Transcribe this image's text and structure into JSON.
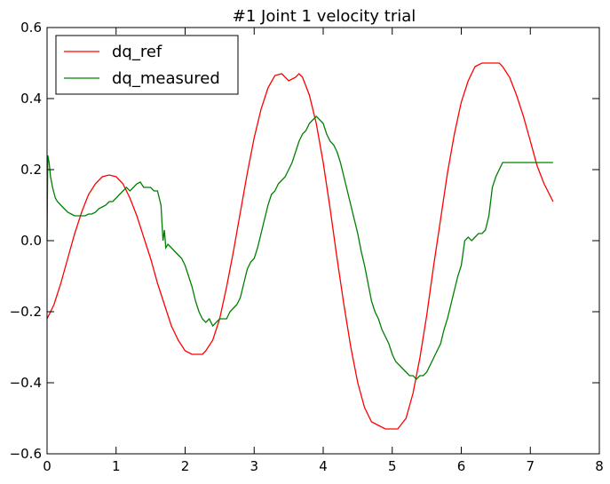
{
  "chart_data": {
    "type": "line",
    "title": "#1 Joint 1 velocity trial",
    "xlabel": "",
    "ylabel": "",
    "xlim": [
      0,
      8
    ],
    "ylim": [
      -0.6,
      0.6
    ],
    "x_ticks": [
      0,
      1,
      2,
      3,
      4,
      5,
      6,
      7,
      8
    ],
    "y_ticks": [
      -0.6,
      -0.4,
      -0.2,
      0.0,
      0.2,
      0.4,
      0.6
    ],
    "x_tick_labels": [
      "0",
      "1",
      "2",
      "3",
      "4",
      "5",
      "6",
      "7",
      "8"
    ],
    "y_tick_labels": [
      "−0.6",
      "−0.4",
      "−0.2",
      "0.0",
      "0.2",
      "0.4",
      "0.6"
    ],
    "grid": false,
    "legend_position": "top-left",
    "series": [
      {
        "name": "dq_ref",
        "color": "#ff0000",
        "x": [
          0.0,
          0.1,
          0.2,
          0.3,
          0.4,
          0.5,
          0.6,
          0.7,
          0.8,
          0.9,
          1.0,
          1.1,
          1.2,
          1.3,
          1.4,
          1.5,
          1.6,
          1.7,
          1.8,
          1.9,
          2.0,
          2.1,
          2.2,
          2.25,
          2.3,
          2.4,
          2.5,
          2.6,
          2.7,
          2.8,
          2.9,
          3.0,
          3.1,
          3.2,
          3.3,
          3.4,
          3.5,
          3.6,
          3.65,
          3.7,
          3.8,
          3.9,
          4.0,
          4.1,
          4.2,
          4.3,
          4.4,
          4.5,
          4.6,
          4.7,
          4.8,
          4.9,
          5.0,
          5.08,
          5.2,
          5.3,
          5.4,
          5.5,
          5.6,
          5.7,
          5.8,
          5.9,
          6.0,
          6.1,
          6.2,
          6.3,
          6.4,
          6.5,
          6.55,
          6.6,
          6.7,
          6.8,
          6.9,
          7.0,
          7.1,
          7.2,
          7.33
        ],
        "y": [
          -0.22,
          -0.18,
          -0.12,
          -0.05,
          0.02,
          0.08,
          0.13,
          0.16,
          0.18,
          0.185,
          0.18,
          0.16,
          0.12,
          0.07,
          0.01,
          -0.05,
          -0.12,
          -0.18,
          -0.24,
          -0.28,
          -0.31,
          -0.32,
          -0.32,
          -0.32,
          -0.31,
          -0.28,
          -0.22,
          -0.13,
          -0.03,
          0.08,
          0.19,
          0.29,
          0.37,
          0.43,
          0.465,
          0.47,
          0.45,
          0.46,
          0.47,
          0.46,
          0.41,
          0.33,
          0.22,
          0.09,
          -0.05,
          -0.18,
          -0.3,
          -0.4,
          -0.47,
          -0.51,
          -0.52,
          -0.53,
          -0.53,
          -0.53,
          -0.5,
          -0.43,
          -0.33,
          -0.21,
          -0.07,
          0.06,
          0.19,
          0.3,
          0.39,
          0.45,
          0.49,
          0.5,
          0.5,
          0.5,
          0.5,
          0.49,
          0.46,
          0.41,
          0.35,
          0.28,
          0.21,
          0.16,
          0.11
        ]
      },
      {
        "name": "dq_measured",
        "color": "#008000",
        "x": [
          0.0,
          0.01,
          0.03,
          0.05,
          0.08,
          0.12,
          0.15,
          0.2,
          0.25,
          0.3,
          0.35,
          0.4,
          0.45,
          0.5,
          0.55,
          0.6,
          0.65,
          0.7,
          0.75,
          0.8,
          0.85,
          0.9,
          0.95,
          1.0,
          1.05,
          1.1,
          1.15,
          1.2,
          1.25,
          1.3,
          1.35,
          1.4,
          1.45,
          1.5,
          1.55,
          1.6,
          1.65,
          1.68,
          1.7,
          1.72,
          1.75,
          1.8,
          1.85,
          1.9,
          1.95,
          2.0,
          2.05,
          2.1,
          2.15,
          2.2,
          2.25,
          2.3,
          2.35,
          2.4,
          2.45,
          2.5,
          2.55,
          2.6,
          2.65,
          2.7,
          2.75,
          2.8,
          2.85,
          2.9,
          2.95,
          3.0,
          3.05,
          3.1,
          3.15,
          3.2,
          3.25,
          3.3,
          3.35,
          3.4,
          3.45,
          3.5,
          3.55,
          3.6,
          3.65,
          3.7,
          3.75,
          3.8,
          3.85,
          3.9,
          3.95,
          4.0,
          4.05,
          4.1,
          4.15,
          4.2,
          4.25,
          4.3,
          4.35,
          4.4,
          4.45,
          4.5,
          4.55,
          4.6,
          4.65,
          4.7,
          4.75,
          4.8,
          4.85,
          4.9,
          4.95,
          5.0,
          5.05,
          5.1,
          5.15,
          5.2,
          5.25,
          5.3,
          5.35,
          5.4,
          5.45,
          5.5,
          5.55,
          5.6,
          5.65,
          5.7,
          5.75,
          5.8,
          5.85,
          5.9,
          5.95,
          6.0,
          6.05,
          6.1,
          6.15,
          6.2,
          6.25,
          6.3,
          6.35,
          6.4,
          6.45,
          6.5,
          6.6,
          6.8,
          7.0,
          7.2,
          7.33
        ],
        "y": [
          0.0,
          0.24,
          0.22,
          0.18,
          0.15,
          0.12,
          0.11,
          0.1,
          0.09,
          0.08,
          0.075,
          0.07,
          0.07,
          0.07,
          0.07,
          0.075,
          0.075,
          0.08,
          0.09,
          0.095,
          0.1,
          0.11,
          0.11,
          0.12,
          0.13,
          0.14,
          0.15,
          0.14,
          0.15,
          0.16,
          0.165,
          0.15,
          0.15,
          0.15,
          0.14,
          0.14,
          0.1,
          0.0,
          0.03,
          -0.02,
          -0.01,
          -0.02,
          -0.03,
          -0.04,
          -0.05,
          -0.07,
          -0.1,
          -0.13,
          -0.17,
          -0.2,
          -0.22,
          -0.23,
          -0.22,
          -0.24,
          -0.23,
          -0.22,
          -0.22,
          -0.22,
          -0.2,
          -0.19,
          -0.18,
          -0.16,
          -0.12,
          -0.08,
          -0.06,
          -0.05,
          -0.02,
          0.02,
          0.06,
          0.1,
          0.13,
          0.14,
          0.16,
          0.17,
          0.18,
          0.2,
          0.22,
          0.25,
          0.28,
          0.3,
          0.31,
          0.33,
          0.34,
          0.35,
          0.34,
          0.33,
          0.3,
          0.28,
          0.27,
          0.25,
          0.22,
          0.18,
          0.14,
          0.1,
          0.06,
          0.02,
          -0.03,
          -0.07,
          -0.12,
          -0.17,
          -0.2,
          -0.22,
          -0.25,
          -0.27,
          -0.29,
          -0.32,
          -0.34,
          -0.35,
          -0.36,
          -0.37,
          -0.38,
          -0.38,
          -0.39,
          -0.38,
          -0.38,
          -0.37,
          -0.35,
          -0.33,
          -0.31,
          -0.29,
          -0.25,
          -0.22,
          -0.18,
          -0.14,
          -0.1,
          -0.07,
          0.0,
          0.01,
          0.0,
          0.01,
          0.02,
          0.02,
          0.03,
          0.07,
          0.15,
          0.18,
          0.22,
          0.22,
          0.22,
          0.22,
          0.22
        ]
      }
    ]
  }
}
